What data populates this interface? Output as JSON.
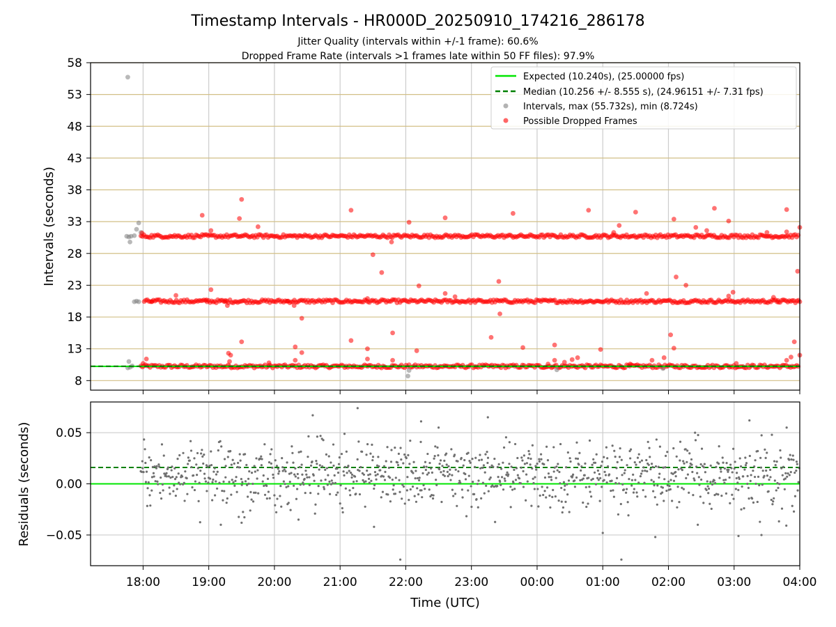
{
  "chart_data": [
    {
      "type": "scatter",
      "title": "Timestamp Intervals - HR000D_20250910_174216_286178",
      "subtitle_1": "Jitter Quality (intervals within +/-1 frame): 60.6%",
      "subtitle_2": "Dropped Frame Rate (intervals >1 frames late within 50 FF files): 97.9%",
      "ylabel": "Intervals (seconds)",
      "ylim": [
        6.5,
        58
      ],
      "yticks": [
        8,
        13,
        18,
        23,
        28,
        33,
        38,
        43,
        48,
        53,
        58
      ],
      "x_range_hours": [
        "17:12",
        "04:00"
      ],
      "grid": true,
      "legend_position": "top-right",
      "legend": [
        {
          "label": "Expected (10.240s), (25.00000 fps)",
          "style": "solid-line",
          "color": "#00e600"
        },
        {
          "label": "Median (10.256 +/- 8.555 s), (24.96151 +/- 7.31 fps)",
          "style": "dashed-line",
          "color": "#008000"
        },
        {
          "label": "Intervals, max (55.732s), min (8.724s)",
          "style": "marker",
          "color": "#808080"
        },
        {
          "label": "Possible Dropped Frames",
          "style": "marker",
          "color": "#ff0000"
        }
      ],
      "reference_lines": {
        "expected": 10.24,
        "median": 10.256
      },
      "bands": [
        {
          "series": "Possible Dropped Frames",
          "y": 10.24,
          "start": "17:58",
          "end": "04:00"
        },
        {
          "series": "Possible Dropped Frames",
          "y": 20.48,
          "start": "18:01",
          "end": "04:00"
        },
        {
          "series": "Possible Dropped Frames",
          "y": 30.72,
          "start": "17:58",
          "end": "04:00"
        }
      ],
      "series": [
        {
          "name": "Intervals, max (55.732s), min (8.724s)",
          "points": [
            [
              "17:46",
              55.73
            ],
            [
              "17:45",
              30.7
            ],
            [
              "17:47",
              30.6
            ],
            [
              "17:49",
              30.7
            ],
            [
              "17:52",
              30.8
            ],
            [
              "17:54",
              31.8
            ],
            [
              "17:56",
              32.8
            ],
            [
              "17:58",
              31.3
            ],
            [
              "17:48",
              29.8
            ],
            [
              "17:46",
              10.0
            ],
            [
              "17:48",
              10.1
            ],
            [
              "17:50",
              10.3
            ],
            [
              "17:47",
              11.0
            ],
            [
              "17:52",
              20.4
            ],
            [
              "17:54",
              20.5
            ],
            [
              "17:56",
              20.4
            ],
            [
              "22:02",
              8.72
            ],
            [
              "22:03",
              9.6
            ],
            [
              "00:18",
              9.7
            ],
            [
              "01:55",
              9.9
            ]
          ]
        },
        {
          "name": "Possible Dropped Frames",
          "points": [
            [
              "17:59",
              31.2
            ],
            [
              "18:00",
              10.7
            ],
            [
              "18:03",
              11.4
            ],
            [
              "18:08",
              20.4
            ],
            [
              "18:30",
              21.4
            ],
            [
              "18:54",
              34.0
            ],
            [
              "18:58",
              20.7
            ],
            [
              "19:02",
              31.6
            ],
            [
              "19:02",
              22.3
            ],
            [
              "19:15",
              20.4
            ],
            [
              "19:17",
              19.8
            ],
            [
              "19:18",
              12.3
            ],
            [
              "19:19",
              11.0
            ],
            [
              "19:20",
              12.0
            ],
            [
              "19:28",
              33.5
            ],
            [
              "19:30",
              36.5
            ],
            [
              "19:30",
              14.1
            ],
            [
              "19:45",
              32.2
            ],
            [
              "19:55",
              10.8
            ],
            [
              "20:12",
              20.5
            ],
            [
              "20:18",
              19.8
            ],
            [
              "20:19",
              13.3
            ],
            [
              "20:19",
              11.2
            ],
            [
              "20:25",
              17.8
            ],
            [
              "20:25",
              12.4
            ],
            [
              "21:10",
              34.8
            ],
            [
              "21:10",
              14.3
            ],
            [
              "21:25",
              20.9
            ],
            [
              "21:25",
              13.0
            ],
            [
              "21:25",
              11.4
            ],
            [
              "21:30",
              27.8
            ],
            [
              "21:38",
              25.0
            ],
            [
              "21:47",
              29.8
            ],
            [
              "21:48",
              15.5
            ],
            [
              "21:48",
              11.2
            ],
            [
              "22:03",
              32.9
            ],
            [
              "22:10",
              12.7
            ],
            [
              "22:12",
              22.9
            ],
            [
              "22:36",
              33.6
            ],
            [
              "22:36",
              21.7
            ],
            [
              "22:45",
              21.2
            ],
            [
              "23:18",
              14.8
            ],
            [
              "23:25",
              23.6
            ],
            [
              "23:26",
              18.5
            ],
            [
              "23:38",
              34.3
            ],
            [
              "23:47",
              13.2
            ],
            [
              "00:10",
              10.6
            ],
            [
              "00:16",
              11.2
            ],
            [
              "00:16",
              13.6
            ],
            [
              "00:25",
              10.9
            ],
            [
              "00:32",
              11.3
            ],
            [
              "00:37",
              11.6
            ],
            [
              "00:47",
              34.8
            ],
            [
              "00:58",
              12.9
            ],
            [
              "01:10",
              31.3
            ],
            [
              "01:15",
              32.4
            ],
            [
              "01:25",
              10.6
            ],
            [
              "01:30",
              34.5
            ],
            [
              "01:40",
              21.7
            ],
            [
              "01:45",
              11.2
            ],
            [
              "01:56",
              11.6
            ],
            [
              "02:02",
              15.2
            ],
            [
              "02:05",
              33.4
            ],
            [
              "02:07",
              24.3
            ],
            [
              "02:05",
              13.1
            ],
            [
              "02:16",
              23.0
            ],
            [
              "02:25",
              32.1
            ],
            [
              "02:35",
              31.6
            ],
            [
              "02:42",
              35.1
            ],
            [
              "02:55",
              33.1
            ],
            [
              "02:55",
              21.3
            ],
            [
              "02:59",
              21.9
            ],
            [
              "03:02",
              10.7
            ],
            [
              "03:30",
              31.3
            ],
            [
              "03:36",
              21.1
            ],
            [
              "03:40",
              20.6
            ],
            [
              "03:48",
              34.9
            ],
            [
              "03:48",
              31.4
            ],
            [
              "03:48",
              11.2
            ],
            [
              "03:52",
              11.7
            ],
            [
              "03:55",
              14.1
            ],
            [
              "03:58",
              25.2
            ],
            [
              "04:00",
              12.0
            ],
            [
              "04:00",
              32.1
            ],
            [
              "04:00",
              20.4
            ]
          ]
        }
      ]
    },
    {
      "type": "scatter",
      "xlabel": "Time (UTC)",
      "ylabel": "Residuals (seconds)",
      "ylim": [
        -0.08,
        0.08
      ],
      "yticks": [
        0.05,
        0.0,
        -0.05
      ],
      "ytick_labels": [
        "0.05",
        "0.00",
        "−0.05"
      ],
      "xticks": [
        "18:00",
        "19:00",
        "20:00",
        "21:00",
        "22:00",
        "23:00",
        "00:00",
        "01:00",
        "02:00",
        "03:00",
        "04:00"
      ],
      "grid": true,
      "reference_lines": {
        "expected": 0.0,
        "median": 0.016
      },
      "series": [
        {
          "name": "",
          "color": "#707070",
          "spread_std": 0.02,
          "points": [
            [
              "21:16",
              0.074
            ],
            [
              "20:35",
              0.067
            ],
            [
              "23:15",
              0.065
            ],
            [
              "22:14",
              0.061
            ],
            [
              "03:14",
              0.062
            ],
            [
              "03:48",
              0.055
            ],
            [
              "22:30",
              0.055
            ],
            [
              "21:55",
              -0.074
            ],
            [
              "01:00",
              -0.048
            ],
            [
              "01:17",
              -0.074
            ],
            [
              "01:48",
              -0.052
            ],
            [
              "03:04",
              -0.051
            ],
            [
              "03:25",
              -0.05
            ],
            [
              "21:31",
              -0.042
            ],
            [
              "19:30",
              -0.038
            ],
            [
              "20:22",
              -0.035
            ]
          ]
        }
      ]
    }
  ]
}
